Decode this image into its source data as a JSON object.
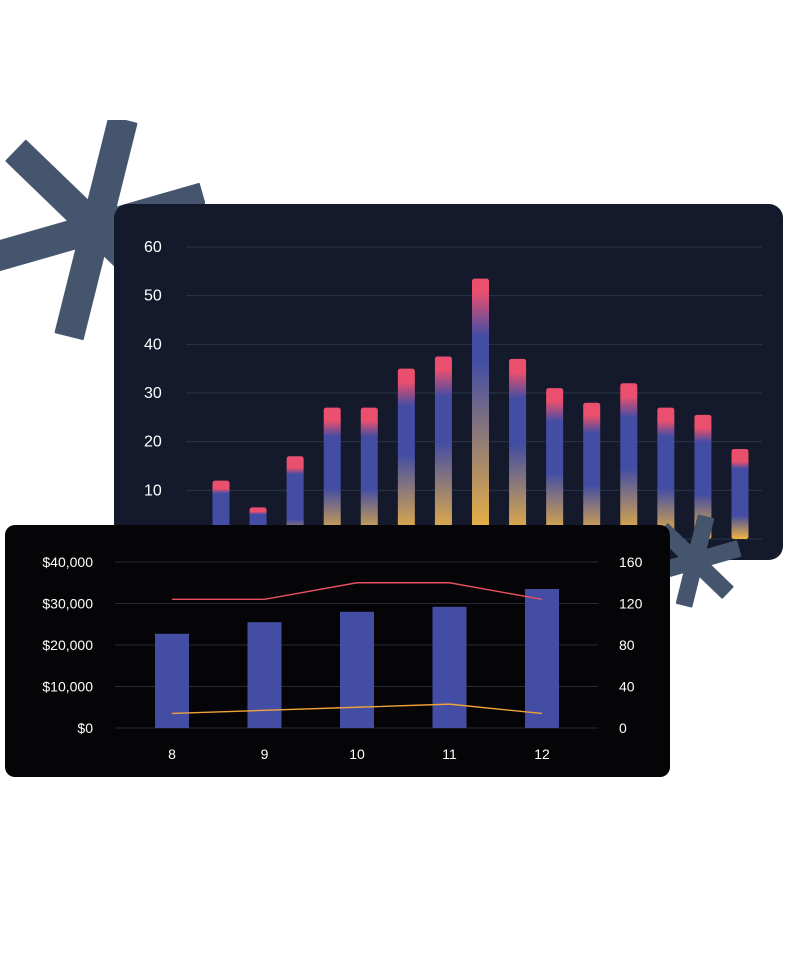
{
  "colors": {
    "page_background": "#ffffff",
    "asterisk": "#46556e",
    "top_panel": "#141a2b",
    "bottom_panel": "#050507",
    "bar_blue": "#434da3",
    "bar_orange": "#f2b63f",
    "bar_pink": "#ea4f6e",
    "line_red": "#e8505e",
    "line_orange": "#f0a23c"
  },
  "decorations": [
    "asterisk-icon-large",
    "asterisk-icon-small"
  ],
  "chart_data": [
    {
      "type": "bar",
      "y_ticks": [
        "60",
        "50",
        "40",
        "30",
        "20",
        "10"
      ],
      "ylim": [
        0,
        60
      ],
      "grid": true,
      "values": [
        12,
        6.5,
        17,
        27,
        27,
        35,
        37.5,
        53.5,
        37,
        31,
        28,
        32,
        27,
        25.5,
        18.5
      ]
    },
    {
      "type": "bar",
      "categories": [
        "8",
        "9",
        "10",
        "11",
        "12"
      ],
      "y_left_ticks": [
        "$40,000",
        "$30,000",
        "$20,000",
        "$10,000",
        "$0"
      ],
      "y_right_ticks": [
        "160",
        "120",
        "80",
        "40",
        "0"
      ],
      "ylim_left": [
        0,
        40000
      ],
      "ylim_right": [
        0,
        160
      ],
      "grid": true,
      "bars": [
        22700,
        25500,
        28000,
        29200,
        33500
      ],
      "lines": [
        {
          "values": [
            124,
            124,
            140,
            140,
            124
          ],
          "axis": "right",
          "color": "#e8505e"
        },
        {
          "values": [
            14,
            17,
            20,
            23,
            14
          ],
          "axis": "right",
          "color": "#f0a23c"
        }
      ]
    }
  ]
}
